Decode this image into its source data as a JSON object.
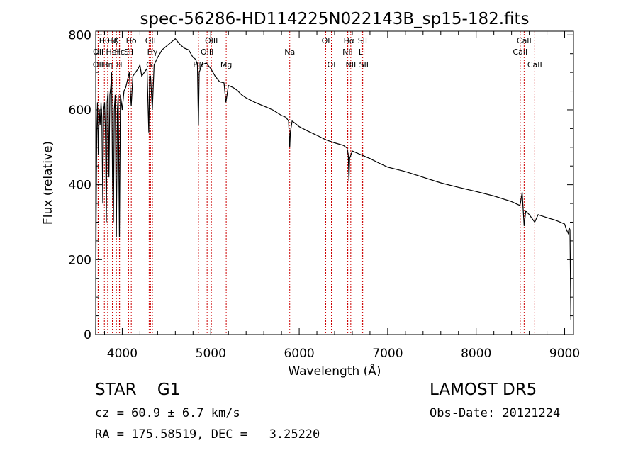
{
  "chart_data": {
    "type": "line",
    "title": "spec-56286-HD114225N022143B_sp15-182.fits",
    "xlabel": "Wavelength (Å)",
    "ylabel": "Flux (relative)",
    "xlim": [
      3700,
      9100
    ],
    "ylim": [
      0,
      810
    ],
    "x_ticks": [
      4000,
      5000,
      6000,
      7000,
      8000,
      9000
    ],
    "y_ticks": [
      0,
      200,
      400,
      600,
      800
    ],
    "grid": false,
    "series": [
      {
        "x": [
          3700,
          3705,
          3712,
          3720,
          3730,
          3740,
          3750,
          3760,
          3770,
          3780,
          3790,
          3800,
          3810,
          3820,
          3830,
          3840,
          3850,
          3860,
          3870,
          3880,
          3890,
          3900,
          3910,
          3920,
          3933,
          3945,
          3955,
          3968,
          3980,
          3990,
          4000,
          4020,
          4040,
          4060,
          4080,
          4101,
          4120,
          4150,
          4180,
          4200,
          4220,
          4250,
          4280,
          4300,
          4310,
          4320,
          4340,
          4360,
          4380,
          4400,
          4450,
          4500,
          4550,
          4600,
          4650,
          4700,
          4750,
          4800,
          4830,
          4850,
          4861,
          4870,
          4900,
          4950,
          5000,
          5050,
          5100,
          5150,
          5172,
          5200,
          5250,
          5300,
          5350,
          5400,
          5500,
          5600,
          5700,
          5800,
          5850,
          5880,
          5893,
          5900,
          5920,
          5950,
          6000,
          6100,
          6200,
          6300,
          6400,
          6500,
          6540,
          6555,
          6563,
          6570,
          6600,
          6700,
          6800,
          6900,
          7000,
          7200,
          7400,
          7600,
          7800,
          8000,
          8200,
          8400,
          8490,
          8500,
          8520,
          8542,
          8560,
          8600,
          8662,
          8700,
          8800,
          8900,
          9000,
          9020,
          9040,
          9050,
          9060,
          9070
        ],
        "values": [
          0,
          300,
          540,
          620,
          480,
          600,
          560,
          620,
          580,
          350,
          600,
          620,
          540,
          300,
          620,
          650,
          420,
          640,
          660,
          700,
          420,
          300,
          600,
          640,
          260,
          600,
          640,
          260,
          640,
          620,
          600,
          650,
          660,
          680,
          700,
          610,
          690,
          700,
          710,
          720,
          690,
          700,
          710,
          540,
          690,
          690,
          600,
          720,
          730,
          740,
          760,
          770,
          780,
          790,
          775,
          765,
          760,
          740,
          735,
          720,
          560,
          700,
          720,
          725,
          710,
          690,
          675,
          672,
          620,
          665,
          660,
          652,
          640,
          632,
          620,
          610,
          600,
          585,
          580,
          570,
          500,
          540,
          570,
          565,
          555,
          543,
          532,
          520,
          512,
          505,
          498,
          480,
          410,
          470,
          490,
          480,
          470,
          458,
          447,
          435,
          420,
          405,
          393,
          382,
          370,
          355,
          345,
          350,
          380,
          290,
          330,
          320,
          300,
          320,
          312,
          305,
          295,
          280,
          270,
          285,
          280,
          40
        ]
      }
    ],
    "line_markers": [
      {
        "label": "OII",
        "x": 3727,
        "row": 3
      },
      {
        "label": "OII",
        "x": 3729,
        "row": 2
      },
      {
        "label": "Hθ",
        "x": 3798,
        "row": 1
      },
      {
        "label": "Hη",
        "x": 3835,
        "row": 3
      },
      {
        "label": "Hζ",
        "x": 3889,
        "row": 1
      },
      {
        "label": "HeI",
        "x": 3889,
        "row": 2
      },
      {
        "label": "K",
        "x": 3934,
        "row": 1
      },
      {
        "label": "H",
        "x": 3968,
        "row": 3
      },
      {
        "label": "Hε",
        "x": 3970,
        "row": 2
      },
      {
        "label": "Hδ",
        "x": 4102,
        "row": 1
      },
      {
        "label": "SII",
        "x": 4072,
        "row": 2
      },
      {
        "label": "G",
        "x": 4304,
        "row": 3
      },
      {
        "label": "OII",
        "x": 4320,
        "row": 1
      },
      {
        "label": "Hγ",
        "x": 4341,
        "row": 2
      },
      {
        "label": "Hβ",
        "x": 4861,
        "row": 3
      },
      {
        "label": "OIII",
        "x": 4959,
        "row": 2
      },
      {
        "label": "OIII",
        "x": 5007,
        "row": 1
      },
      {
        "label": "Mg",
        "x": 5175,
        "row": 3
      },
      {
        "label": "Na",
        "x": 5893,
        "row": 2
      },
      {
        "label": "OI",
        "x": 6300,
        "row": 1
      },
      {
        "label": "OI",
        "x": 6364,
        "row": 3
      },
      {
        "label": "NII",
        "x": 6548,
        "row": 2
      },
      {
        "label": "Hα",
        "x": 6563,
        "row": 1
      },
      {
        "label": "NII",
        "x": 6583,
        "row": 3
      },
      {
        "label": "Li",
        "x": 6708,
        "row": 2
      },
      {
        "label": "SII",
        "x": 6716,
        "row": 1
      },
      {
        "label": "SII",
        "x": 6731,
        "row": 3
      },
      {
        "label": "CaII",
        "x": 8498,
        "row": 2
      },
      {
        "label": "CaII",
        "x": 8542,
        "row": 1
      },
      {
        "label": "CaII",
        "x": 8662,
        "row": 3
      }
    ]
  },
  "info": {
    "object_class": "STAR    G1",
    "survey": "LAMOST DR5",
    "cz": "cz = 60.9 ± 6.7 km/s",
    "obs_date": "Obs-Date: 20121224",
    "radec": "RA = 175.58519, DEC =   3.25220"
  },
  "colors": {
    "spectrum": "#000000",
    "line_marker": "#cc0000",
    "axes": "#000000",
    "background": "#ffffff"
  }
}
